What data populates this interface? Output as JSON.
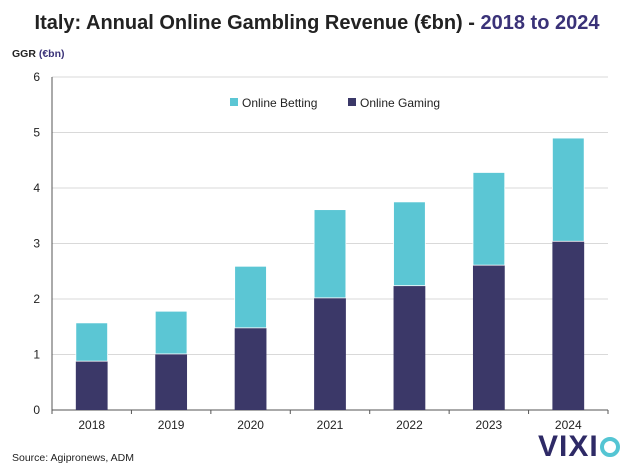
{
  "header": {
    "title_main": "Italy: Annual Online Gambling Revenue (€bn) - ",
    "title_highlight": "2018 to 2024"
  },
  "axis": {
    "ylabel_prefix": "GGR ",
    "ylabel_unit": "(€bn)"
  },
  "footer": {
    "source": "Source: Agipronews, ADM",
    "logo_text": "VIXI",
    "logo_icon": "o-ring-icon"
  },
  "colors": {
    "online_betting": "#5bc6d4",
    "online_gaming": "#3b3868",
    "title_highlight": "#3a3278"
  },
  "chart_data": {
    "type": "bar",
    "stacked": true,
    "categories": [
      "2018",
      "2019",
      "2020",
      "2021",
      "2022",
      "2023",
      "2024"
    ],
    "series": [
      {
        "name": "Online Gaming",
        "values": [
          0.88,
          1.01,
          1.48,
          2.02,
          2.24,
          2.61,
          3.04
        ]
      },
      {
        "name": "Online Betting",
        "values": [
          0.69,
          0.77,
          1.11,
          1.59,
          1.51,
          1.67,
          1.86
        ]
      }
    ],
    "ylim": [
      0,
      6
    ],
    "yticks": [
      "0",
      "1",
      "2",
      "3",
      "4",
      "5",
      "6"
    ],
    "grid": true,
    "legend_position": "top-center"
  }
}
